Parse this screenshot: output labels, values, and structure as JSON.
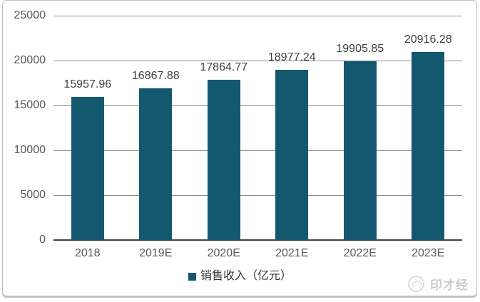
{
  "chart_data": {
    "type": "bar",
    "categories": [
      "2018",
      "2019E",
      "2020E",
      "2021E",
      "2022E",
      "2023E"
    ],
    "values": [
      15957.96,
      16867.88,
      17864.77,
      18977.24,
      19905.85,
      20916.28
    ],
    "data_labels": [
      "15957.96",
      "16867.88",
      "17864.77",
      "18977.24",
      "19905.85",
      "20916.28"
    ],
    "xlabel": "",
    "ylabel": "",
    "ylim": [
      0,
      25000
    ],
    "yticks": [
      0,
      5000,
      10000,
      15000,
      20000,
      25000
    ],
    "ytick_labels": [
      "0",
      "5000",
      "10000",
      "15000",
      "20000",
      "25000"
    ],
    "grid": true,
    "legend_entries": [
      "销售收入（亿元）"
    ],
    "legend_position": "bottom-center",
    "colors": {
      "bar": "#14586F",
      "gridline": "#8F8F8F",
      "axis_line": "#404040",
      "value_label": "#3F3F3F",
      "tick_label": "#595959",
      "legend_text": "#333333",
      "watermark": "#C9CDD0"
    }
  },
  "legend": {
    "label": "销售收入（亿元）"
  },
  "watermark": {
    "text": "印才经",
    "icon": "circle-logo-icon"
  }
}
